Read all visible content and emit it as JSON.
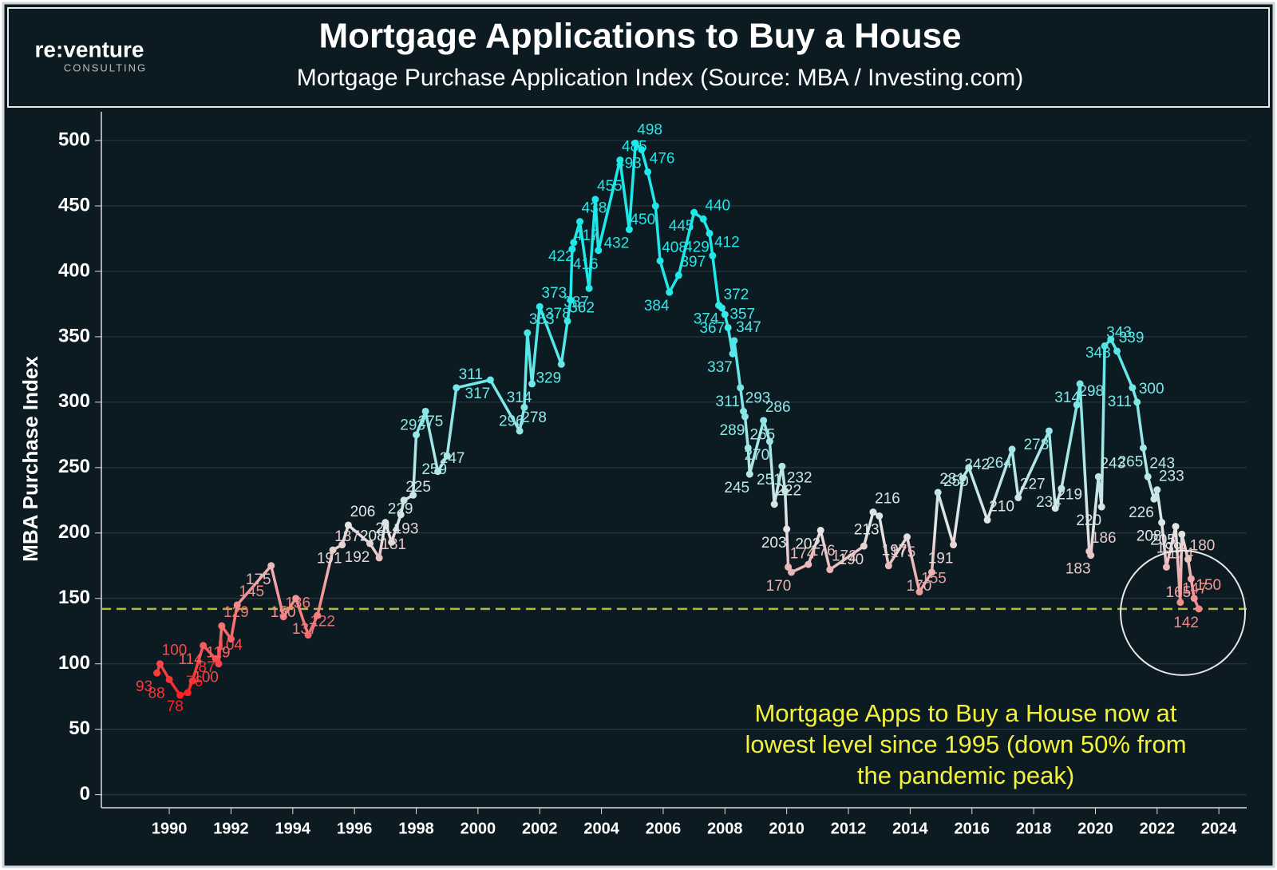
{
  "logo": {
    "name": "re:venture",
    "tagline": "CONSULTING"
  },
  "chart_data": {
    "type": "line",
    "title": "Mortgage Applications to Buy a House",
    "subtitle": "Mortgage Purchase Application Index (Source: MBA / Investing.com)",
    "y_label": "MBA Purchase Index",
    "annotation": [
      "Mortgage Apps to Buy a House now at",
      "lowest level since 1995 (down 50% from",
      "the pandemic peak)"
    ],
    "reference_line": {
      "value": 142,
      "color": "#b5b83a"
    },
    "colors": [
      "#ff2020",
      "#e6e6e6",
      "#1ee8e8"
    ],
    "grid": true,
    "xlim": [
      1987.8,
      2024.9
    ],
    "xticks": [
      1990,
      1992,
      1994,
      1996,
      1998,
      2000,
      2002,
      2004,
      2006,
      2008,
      2010,
      2012,
      2014,
      2016,
      2018,
      2020,
      2022,
      2024
    ],
    "ylim": [
      -10,
      522
    ],
    "yticks": [
      0,
      50,
      100,
      150,
      200,
      250,
      300,
      350,
      400,
      450,
      500
    ],
    "x": [
      1989.6,
      1989.7,
      1990.0,
      1990.35,
      1990.6,
      1990.75,
      1991.1,
      1991.5,
      1991.6,
      1991.7,
      1992.0,
      1992.2,
      1993.3,
      1993.7,
      1994.1,
      1994.5,
      1994.8,
      1995.3,
      1995.6,
      1995.8,
      1996.5,
      1996.8,
      1997.0,
      1997.2,
      1997.5,
      1997.6,
      1997.9,
      1998.0,
      1998.3,
      1998.7,
      1999.0,
      1999.3,
      2000.4,
      2001.35,
      2001.5,
      2001.6,
      2001.75,
      2002.0,
      2002.7,
      2002.9,
      2003.0,
      2003.05,
      2003.1,
      2003.3,
      2003.6,
      2003.8,
      2003.9,
      2004.6,
      2004.9,
      2005.1,
      2005.3,
      2005.5,
      2005.75,
      2005.9,
      2006.2,
      2006.5,
      2007.0,
      2007.3,
      2007.5,
      2007.6,
      2007.8,
      2007.9,
      2008.0,
      2008.1,
      2008.25,
      2008.3,
      2008.5,
      2008.6,
      2008.65,
      2008.75,
      2008.8,
      2009.25,
      2009.45,
      2009.6,
      2009.85,
      2009.95,
      2010.0,
      2010.05,
      2010.15,
      2010.7,
      2011.1,
      2011.4,
      2012.5,
      2012.8,
      2013.0,
      2013.3,
      2013.9,
      2014.3,
      2014.7,
      2014.9,
      2015.4,
      2015.7,
      2015.9,
      2016.5,
      2017.3,
      2017.5,
      2018.5,
      2018.7,
      2018.9,
      2019.4,
      2019.5,
      2019.8,
      2019.85,
      2020.1,
      2020.2,
      2020.3,
      2020.5,
      2020.7,
      2021.2,
      2021.35,
      2021.55,
      2021.7,
      2021.9,
      2022.0,
      2022.15,
      2022.3,
      2022.6,
      2022.75,
      2022.8,
      2023.0,
      2023.1,
      2023.2,
      2023.35
    ],
    "values": [
      93,
      100,
      88,
      76,
      78,
      87,
      114,
      104,
      100,
      129,
      119,
      145,
      175,
      136,
      150,
      122,
      137,
      187,
      191,
      206,
      192,
      181,
      208,
      193,
      214,
      225,
      229,
      275,
      293,
      247,
      259,
      311,
      317,
      278,
      296,
      353,
      314,
      373,
      329,
      362,
      378,
      417,
      422,
      438,
      387,
      455,
      416,
      485,
      432,
      498,
      493,
      476,
      450,
      408,
      384,
      397,
      445,
      440,
      429,
      412,
      374,
      372,
      367,
      357,
      337,
      347,
      311,
      293,
      289,
      265,
      245,
      286,
      270,
      222,
      251,
      232,
      203,
      174,
      170,
      176,
      202,
      172,
      190,
      216,
      213,
      175,
      197,
      155,
      170,
      231,
      191,
      242,
      250,
      210,
      264,
      227,
      278,
      219,
      234,
      298,
      314,
      186,
      183,
      243,
      220,
      343,
      348,
      339,
      311,
      300,
      265,
      243,
      226,
      233,
      208,
      174,
      205,
      147,
      199,
      180,
      165,
      150,
      142
    ]
  }
}
